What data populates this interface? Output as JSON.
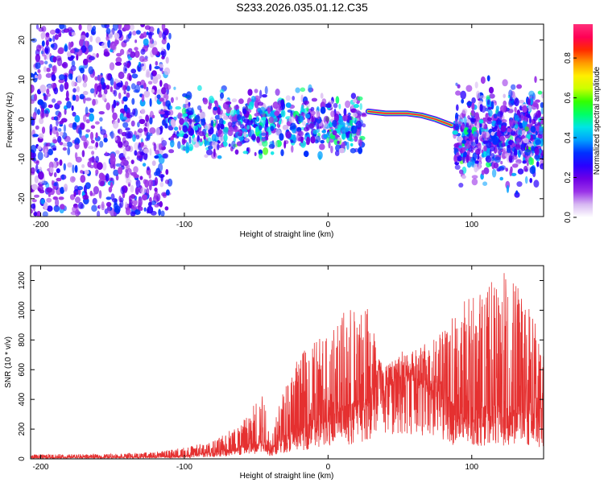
{
  "title": "S233.2026.035.01.12.C35",
  "colormap": [
    "#ffffff",
    "#d7b8f2",
    "#9b33e8",
    "#6f00e6",
    "#2a00ff",
    "#0030ff",
    "#00a0ff",
    "#00e5e5",
    "#00ff66",
    "#33ff00",
    "#ccff00",
    "#ffee00",
    "#ff9900",
    "#ff2a00",
    "#ff0055",
    "#ff2f7a"
  ],
  "accent_color": "#e53030",
  "chart_data": [
    {
      "type": "heatmap",
      "title": "",
      "xlabel": "Height of straight line (km)",
      "ylabel": "Frequency (Hz)",
      "xlim": [
        -207,
        150
      ],
      "ylim": [
        -24.5,
        24
      ],
      "xticks": [
        -200,
        -100,
        0,
        100
      ],
      "yticks": [
        -20,
        -10,
        0,
        10,
        20
      ],
      "grid": false,
      "colorbar": {
        "label": "Normalized spectral amplitude",
        "range": [
          0,
          0.97
        ],
        "ticks": [
          0.0,
          0.2,
          0.4,
          0.6,
          0.8
        ]
      },
      "ridge": {
        "description": "strong narrow spectral line",
        "points": [
          [
            28,
            2.0
          ],
          [
            40,
            1.5
          ],
          [
            55,
            1.5
          ],
          [
            65,
            1.0
          ],
          [
            75,
            0.0
          ],
          [
            86,
            -1.5
          ]
        ],
        "peak_amplitude": 0.95
      },
      "regions": [
        {
          "x": [
            -207,
            -110
          ],
          "freq": [
            -24,
            24
          ],
          "amplitude": 0.3,
          "density": "diffuse"
        },
        {
          "x": [
            -110,
            25
          ],
          "freq": [
            -12,
            10
          ],
          "amplitude": 0.45,
          "density": "clustered"
        },
        {
          "x": [
            88,
            150
          ],
          "freq": [
            -20,
            12
          ],
          "amplitude": 0.35,
          "density": "clustered"
        }
      ]
    },
    {
      "type": "line",
      "title": "",
      "xlabel": "Height of straight line (km)",
      "ylabel": "SNR (10 * v/v)",
      "xlim": [
        -207,
        150
      ],
      "ylim": [
        0,
        1300
      ],
      "xticks": [
        -200,
        -100,
        0,
        100
      ],
      "yticks": [
        0,
        200,
        400,
        600,
        800,
        1000,
        1200
      ],
      "grid": false,
      "series": [
        {
          "name": "SNR",
          "color": "#e53030",
          "envelope": {
            "x": [
              -207,
              -160,
              -120,
              -100,
              -80,
              -60,
              -45,
              -40,
              -30,
              -20,
              -10,
              0,
              10,
              20,
              30,
              35,
              40,
              50,
              60,
              70,
              80,
              90,
              100,
              110,
              120,
              130,
              140,
              150
            ],
            "base": [
              8,
              10,
              14,
              20,
              40,
              70,
              120,
              60,
              140,
              180,
              220,
              280,
              300,
              330,
              380,
              620,
              480,
              560,
              520,
              480,
              420,
              260,
              280,
              300,
              300,
              280,
              300,
              240
            ],
            "peak": [
              30,
              32,
              45,
              80,
              120,
              250,
              480,
              150,
              520,
              700,
              800,
              900,
              980,
              1040,
              1020,
              680,
              620,
              720,
              760,
              780,
              860,
              1050,
              1100,
              1150,
              1290,
              1200,
              1080,
              720
            ]
          }
        }
      ]
    }
  ]
}
